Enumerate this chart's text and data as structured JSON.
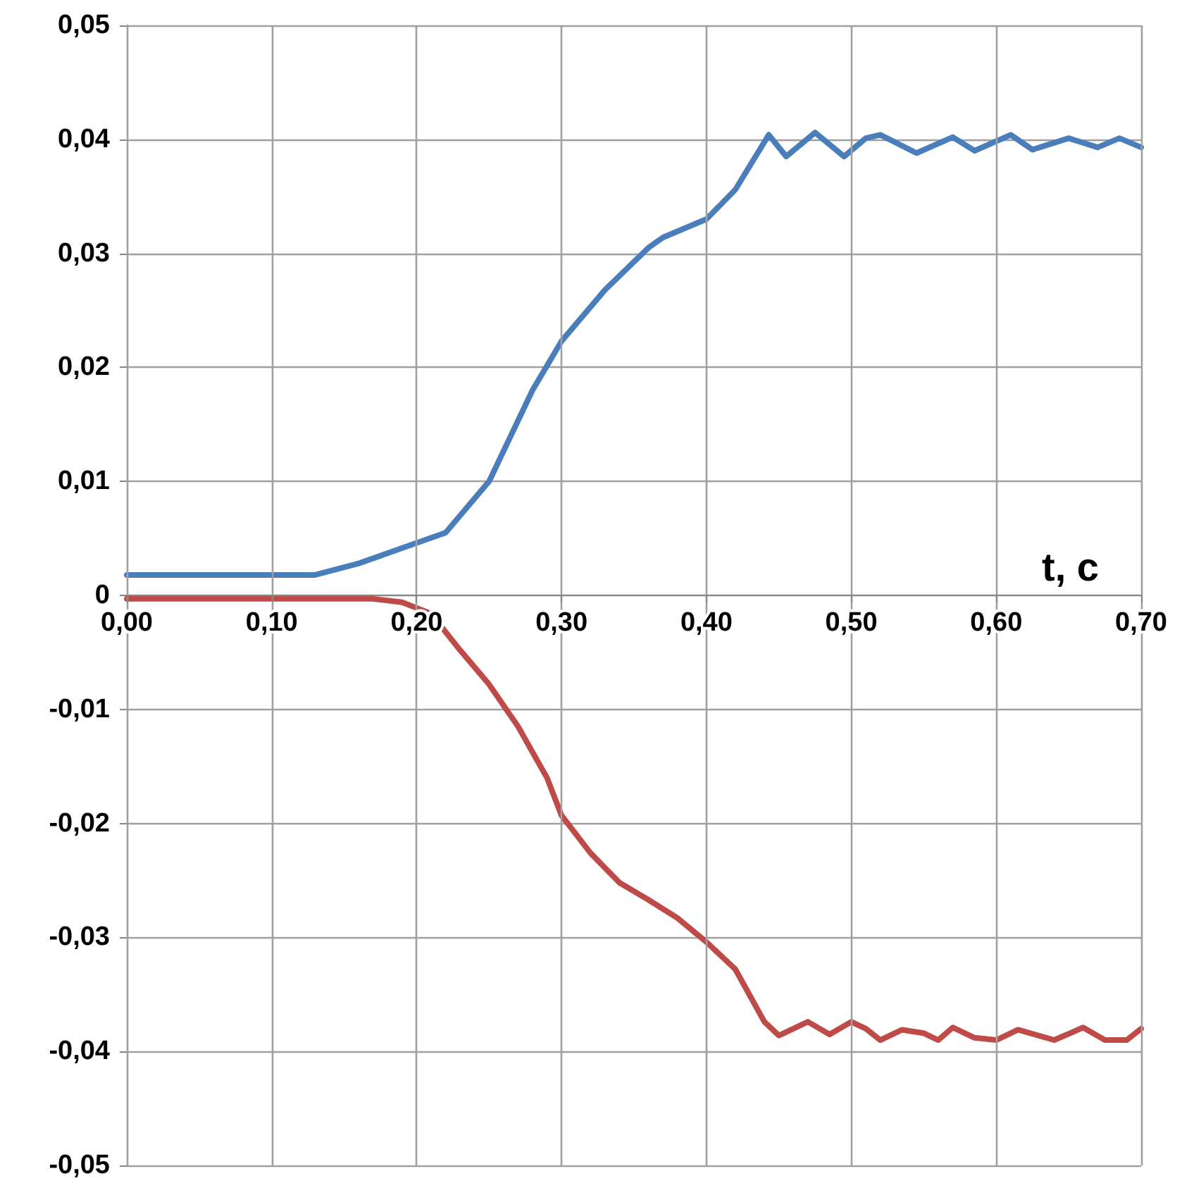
{
  "chart_data": {
    "type": "line",
    "xlabel": "t, c",
    "xlim": [
      0,
      0.7
    ],
    "xticks": [
      {
        "value": 0,
        "label": "0,00"
      },
      {
        "value": 0.1,
        "label": "0,10"
      },
      {
        "value": 0.2,
        "label": "0,20"
      },
      {
        "value": 0.3,
        "label": "0,30"
      },
      {
        "value": 0.4,
        "label": "0,40"
      },
      {
        "value": 0.5,
        "label": "0,50"
      },
      {
        "value": 0.6,
        "label": "0,60"
      },
      {
        "value": 0.7,
        "label": "0,70"
      }
    ],
    "ylim": [
      -0.05,
      0.05
    ],
    "yticks": [
      {
        "value": -0.05,
        "label": "-0,05"
      },
      {
        "value": -0.04,
        "label": "-0,04"
      },
      {
        "value": -0.03,
        "label": "-0,03"
      },
      {
        "value": -0.02,
        "label": "-0,02"
      },
      {
        "value": -0.01,
        "label": "-0,01"
      },
      0,
      {
        "value": 0.01,
        "label": "0,01"
      },
      {
        "value": 0.02,
        "label": "0,02"
      },
      {
        "value": 0.03,
        "label": "0,03"
      },
      {
        "value": 0.04,
        "label": "0,04"
      },
      {
        "value": 0.05,
        "label": "0,05"
      }
    ],
    "grid": true,
    "marker": "none",
    "line_style": "solid",
    "series": [
      {
        "color": "#4a7ebb",
        "x": [
          0,
          0.05,
          0.1,
          0.13,
          0.16,
          0.2,
          0.22,
          0.25,
          0.28,
          0.3,
          0.33,
          0.36,
          0.37,
          0.4,
          0.42,
          0.443,
          0.455,
          0.475,
          0.495,
          0.51,
          0.52,
          0.545,
          0.57,
          0.585,
          0.61,
          0.625,
          0.65,
          0.67,
          0.685,
          0.7
        ],
        "values": [
          0.0018,
          0.0018,
          0.0018,
          0.0018,
          0.0028,
          0.0046,
          0.0055,
          0.01,
          0.018,
          0.0223,
          0.0268,
          0.0305,
          0.0314,
          0.033,
          0.0356,
          0.0404,
          0.0385,
          0.0406,
          0.0385,
          0.0401,
          0.0404,
          0.0388,
          0.0402,
          0.039,
          0.0404,
          0.0391,
          0.0401,
          0.0393,
          0.0401,
          0.0393
        ]
      },
      {
        "color": "#be4b48",
        "x": [
          0,
          0.05,
          0.1,
          0.15,
          0.17,
          0.19,
          0.21,
          0.23,
          0.25,
          0.27,
          0.29,
          0.3,
          0.32,
          0.34,
          0.36,
          0.38,
          0.4,
          0.42,
          0.44,
          0.45,
          0.47,
          0.485,
          0.5,
          0.51,
          0.52,
          0.535,
          0.55,
          0.56,
          0.57,
          0.585,
          0.6,
          0.615,
          0.64,
          0.66,
          0.675,
          0.69,
          0.7
        ],
        "values": [
          -0.0003,
          -0.0003,
          -0.0003,
          -0.0003,
          -0.0003,
          -0.0006,
          -0.0016,
          -0.0048,
          -0.0078,
          -0.0115,
          -0.016,
          -0.0193,
          -0.0226,
          -0.0252,
          -0.0267,
          -0.0283,
          -0.0304,
          -0.0328,
          -0.0374,
          -0.0386,
          -0.0374,
          -0.0385,
          -0.0374,
          -0.038,
          -0.039,
          -0.0381,
          -0.0384,
          -0.039,
          -0.0379,
          -0.0388,
          -0.039,
          -0.0381,
          -0.039,
          -0.0379,
          -0.039,
          -0.039,
          -0.038
        ]
      }
    ]
  }
}
